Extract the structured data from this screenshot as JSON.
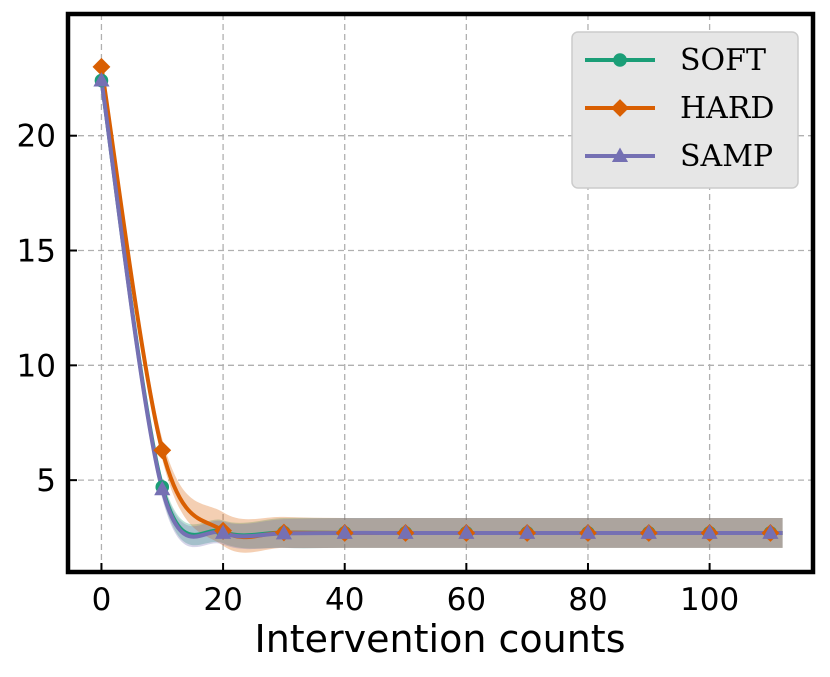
{
  "chart_data": {
    "type": "line",
    "title": "",
    "xlabel": "Intervention counts",
    "ylabel": "",
    "xlim": [
      -5.5,
      117
    ],
    "ylim": [
      1,
      25.3
    ],
    "xticks": [
      0,
      20,
      40,
      60,
      80,
      100
    ],
    "yticks": [
      5,
      10,
      15,
      20
    ],
    "x_markers": [
      0,
      10,
      20,
      30,
      40,
      50,
      60,
      70,
      80,
      90,
      100,
      110
    ],
    "grid": true,
    "legend_position": "top-right",
    "series": [
      {
        "name": "SOFT",
        "color": "#1b9e77",
        "marker": "circle",
        "x": [
          0,
          10,
          20,
          30,
          40,
          50,
          60,
          70,
          80,
          90,
          100,
          110,
          112
        ],
        "values": [
          22.4,
          4.7,
          2.75,
          2.72,
          2.7,
          2.7,
          2.7,
          2.7,
          2.7,
          2.7,
          2.7,
          2.7,
          2.7
        ],
        "band_lower": [
          22.2,
          4.3,
          2.25,
          2.05,
          2.05,
          2.05,
          2.05,
          2.05,
          2.05,
          2.05,
          2.05,
          2.05,
          2.05
        ],
        "band_upper": [
          22.6,
          5.1,
          3.25,
          3.35,
          3.35,
          3.35,
          3.35,
          3.35,
          3.35,
          3.35,
          3.35,
          3.35,
          3.35
        ]
      },
      {
        "name": "HARD",
        "color": "#d95f02",
        "marker": "diamond",
        "x": [
          0,
          10,
          20,
          30,
          40,
          50,
          60,
          70,
          80,
          90,
          100,
          110,
          112
        ],
        "values": [
          23.0,
          6.3,
          2.8,
          2.72,
          2.7,
          2.7,
          2.7,
          2.7,
          2.7,
          2.7,
          2.7,
          2.7,
          2.7
        ],
        "band_lower": [
          22.8,
          5.9,
          2.15,
          2.05,
          2.05,
          2.05,
          2.05,
          2.05,
          2.05,
          2.05,
          2.05,
          2.05,
          2.05
        ],
        "band_upper": [
          23.2,
          6.8,
          3.6,
          3.4,
          3.35,
          3.35,
          3.35,
          3.35,
          3.35,
          3.35,
          3.35,
          3.35,
          3.35
        ]
      },
      {
        "name": "SAMP",
        "color": "#7570b3",
        "marker": "triangle",
        "x": [
          0,
          10,
          20,
          30,
          40,
          50,
          60,
          70,
          80,
          90,
          100,
          110,
          112
        ],
        "values": [
          22.4,
          4.6,
          2.7,
          2.68,
          2.7,
          2.7,
          2.7,
          2.7,
          2.7,
          2.7,
          2.7,
          2.7,
          2.7
        ],
        "band_lower": [
          22.2,
          4.2,
          2.2,
          2.05,
          2.05,
          2.05,
          2.05,
          2.05,
          2.05,
          2.05,
          2.05,
          2.05,
          2.05
        ],
        "band_upper": [
          22.6,
          5.0,
          3.2,
          3.3,
          3.35,
          3.35,
          3.35,
          3.35,
          3.35,
          3.35,
          3.35,
          3.35,
          3.35
        ]
      }
    ]
  }
}
